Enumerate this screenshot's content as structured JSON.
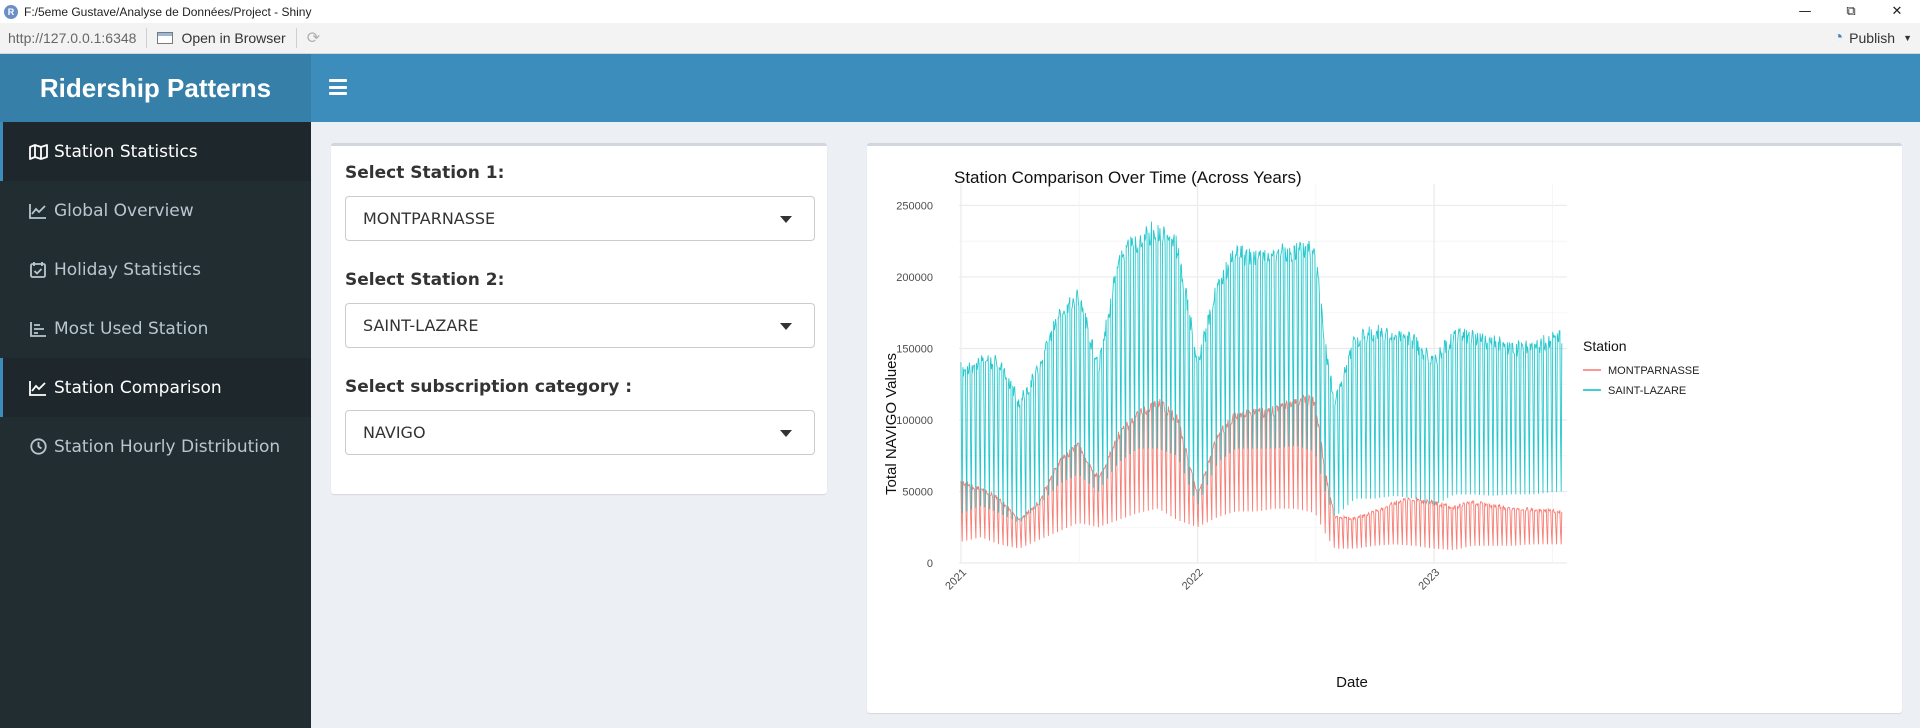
{
  "window": {
    "title": "F:/5eme Gustave/Analyse de Données/Project - Shiny",
    "app_icon_letter": "R",
    "minimize": "—",
    "maximize": "⧉",
    "close": "✕"
  },
  "viewer": {
    "url": "http://127.0.0.1:6348",
    "open_in_browser": "Open in Browser",
    "publish": "Publish"
  },
  "header": {
    "title": "Ridership Patterns"
  },
  "sidebar": {
    "items": [
      {
        "label": "Station Statistics",
        "icon": "map-icon",
        "active": true
      },
      {
        "label": "Global Overview",
        "icon": "line-chart-icon",
        "active": false
      },
      {
        "label": "Holiday Statistics",
        "icon": "calendar-check-icon",
        "active": false
      },
      {
        "label": "Most Used Station",
        "icon": "bar-list-icon",
        "active": false
      },
      {
        "label": "Station Comparison",
        "icon": "line-chart-icon",
        "active": true
      },
      {
        "label": "Station Hourly Distribution",
        "icon": "clock-icon",
        "active": false
      }
    ]
  },
  "controls": {
    "station1": {
      "label": "Select Station 1:",
      "value": "MONTPARNASSE"
    },
    "station2": {
      "label": "Select Station 2:",
      "value": "SAINT-LAZARE"
    },
    "category": {
      "label": "Select subscription category :",
      "value": "NAVIGO"
    }
  },
  "colors": {
    "navbar": "#3c8dbc",
    "logo": "#367fa9",
    "sidebar": "#222d32",
    "series1": "#F8766D",
    "series2": "#00BFC4"
  },
  "chart_data": {
    "type": "line",
    "title": "Station Comparison Over Time (Across Years)",
    "xlabel": "Date",
    "ylabel": "Total NAVIGO Values",
    "ylim": [
      0,
      265000
    ],
    "xlim": [
      "2020-12-29",
      "2023-07-25"
    ],
    "yticks": [
      0,
      50000,
      100000,
      150000,
      200000,
      250000
    ],
    "yticklabels": [
      "0",
      "50000",
      "100000",
      "150000",
      "200000",
      "250000"
    ],
    "xticks": [
      "2021-01-01",
      "2022-01-01",
      "2023-01-01"
    ],
    "xticklabels": [
      "2021",
      "2022",
      "2023"
    ],
    "grid": true,
    "legend_title": "Station",
    "legend_position": "right",
    "series": [
      {
        "name": "MONTPARNASSE",
        "color": "#F8766D",
        "peaks": [
          [
            "2021-01-04",
            60000
          ],
          [
            "2021-02-01",
            55000
          ],
          [
            "2021-03-01",
            48000
          ],
          [
            "2021-04-01",
            32000
          ],
          [
            "2021-05-01",
            45000
          ],
          [
            "2021-06-01",
            75000
          ],
          [
            "2021-07-01",
            88000
          ],
          [
            "2021-08-01",
            62000
          ],
          [
            "2021-09-01",
            95000
          ],
          [
            "2021-10-01",
            110000
          ],
          [
            "2021-11-01",
            120000
          ],
          [
            "2021-12-01",
            108000
          ],
          [
            "2022-01-01",
            50000
          ],
          [
            "2022-02-01",
            95000
          ],
          [
            "2022-03-01",
            110000
          ],
          [
            "2022-04-01",
            112000
          ],
          [
            "2022-05-01",
            113000
          ],
          [
            "2022-06-01",
            122000
          ],
          [
            "2022-07-01",
            120000
          ],
          [
            "2022-07-20",
            60000
          ],
          [
            "2022-08-01",
            35000
          ],
          [
            "2022-09-01",
            33000
          ],
          [
            "2022-10-01",
            38000
          ],
          [
            "2022-11-01",
            45000
          ],
          [
            "2022-12-01",
            48000
          ],
          [
            "2023-01-01",
            45000
          ],
          [
            "2023-02-01",
            42000
          ],
          [
            "2023-03-01",
            45000
          ],
          [
            "2023-04-01",
            43000
          ],
          [
            "2023-05-01",
            40000
          ],
          [
            "2023-06-01",
            40000
          ],
          [
            "2023-07-15",
            38000
          ]
        ],
        "troughs": [
          [
            "2021-01-04",
            15000
          ],
          [
            "2021-02-01",
            18000
          ],
          [
            "2021-03-01",
            13000
          ],
          [
            "2021-04-01",
            10000
          ],
          [
            "2021-05-01",
            16000
          ],
          [
            "2021-06-01",
            22000
          ],
          [
            "2021-07-01",
            28000
          ],
          [
            "2021-08-01",
            25000
          ],
          [
            "2021-09-01",
            30000
          ],
          [
            "2021-10-01",
            35000
          ],
          [
            "2021-11-01",
            38000
          ],
          [
            "2021-12-01",
            30000
          ],
          [
            "2022-01-01",
            25000
          ],
          [
            "2022-02-01",
            32000
          ],
          [
            "2022-03-01",
            36000
          ],
          [
            "2022-04-01",
            36000
          ],
          [
            "2022-05-01",
            38000
          ],
          [
            "2022-06-01",
            38000
          ],
          [
            "2022-07-01",
            35000
          ],
          [
            "2022-07-20",
            18000
          ],
          [
            "2022-08-01",
            10000
          ],
          [
            "2022-09-01",
            10000
          ],
          [
            "2022-10-01",
            12000
          ],
          [
            "2022-11-01",
            13000
          ],
          [
            "2022-12-01",
            12000
          ],
          [
            "2023-01-01",
            10000
          ],
          [
            "2023-02-01",
            9000
          ],
          [
            "2023-03-01",
            12000
          ],
          [
            "2023-04-01",
            12000
          ],
          [
            "2023-05-01",
            12000
          ],
          [
            "2023-06-01",
            13000
          ],
          [
            "2023-07-15",
            13000
          ]
        ]
      },
      {
        "name": "SAINT-LAZARE",
        "color": "#00BFC4",
        "peaks": [
          [
            "2021-01-04",
            145000
          ],
          [
            "2021-02-01",
            150000
          ],
          [
            "2021-03-01",
            152000
          ],
          [
            "2021-04-01",
            120000
          ],
          [
            "2021-05-01",
            145000
          ],
          [
            "2021-06-01",
            185000
          ],
          [
            "2021-07-01",
            200000
          ],
          [
            "2021-08-01",
            145000
          ],
          [
            "2021-09-01",
            225000
          ],
          [
            "2021-10-01",
            240000
          ],
          [
            "2021-11-01",
            248000
          ],
          [
            "2021-12-01",
            235000
          ],
          [
            "2022-01-01",
            150000
          ],
          [
            "2022-02-01",
            205000
          ],
          [
            "2022-03-01",
            230000
          ],
          [
            "2022-04-01",
            225000
          ],
          [
            "2022-05-01",
            230000
          ],
          [
            "2022-06-01",
            232000
          ],
          [
            "2022-07-01",
            233000
          ],
          [
            "2022-07-20",
            150000
          ],
          [
            "2022-08-01",
            120000
          ],
          [
            "2022-09-01",
            168000
          ],
          [
            "2022-10-01",
            172000
          ],
          [
            "2022-11-01",
            170000
          ],
          [
            "2022-12-01",
            165000
          ],
          [
            "2023-01-01",
            150000
          ],
          [
            "2023-02-01",
            170000
          ],
          [
            "2023-03-01",
            168000
          ],
          [
            "2023-04-01",
            165000
          ],
          [
            "2023-05-01",
            160000
          ],
          [
            "2023-06-01",
            160000
          ],
          [
            "2023-07-15",
            170000
          ]
        ],
        "troughs": [
          [
            "2021-01-04",
            35000
          ],
          [
            "2021-02-01",
            40000
          ],
          [
            "2021-03-01",
            35000
          ],
          [
            "2021-04-01",
            28000
          ],
          [
            "2021-05-01",
            40000
          ],
          [
            "2021-06-01",
            55000
          ],
          [
            "2021-07-01",
            62000
          ],
          [
            "2021-08-01",
            50000
          ],
          [
            "2021-09-01",
            70000
          ],
          [
            "2021-10-01",
            80000
          ],
          [
            "2021-11-01",
            80000
          ],
          [
            "2021-12-01",
            75000
          ],
          [
            "2022-01-01",
            40000
          ],
          [
            "2022-02-01",
            70000
          ],
          [
            "2022-03-01",
            80000
          ],
          [
            "2022-04-01",
            80000
          ],
          [
            "2022-05-01",
            80000
          ],
          [
            "2022-06-01",
            82000
          ],
          [
            "2022-07-01",
            78000
          ],
          [
            "2022-07-20",
            45000
          ],
          [
            "2022-08-01",
            32000
          ],
          [
            "2022-09-01",
            45000
          ],
          [
            "2022-10-01",
            45000
          ],
          [
            "2022-11-01",
            47000
          ],
          [
            "2022-12-01",
            45000
          ],
          [
            "2023-01-01",
            40000
          ],
          [
            "2023-02-01",
            48000
          ],
          [
            "2023-03-01",
            48000
          ],
          [
            "2023-04-01",
            47000
          ],
          [
            "2023-05-01",
            48000
          ],
          [
            "2023-06-01",
            48000
          ],
          [
            "2023-07-15",
            50000
          ]
        ]
      }
    ]
  }
}
